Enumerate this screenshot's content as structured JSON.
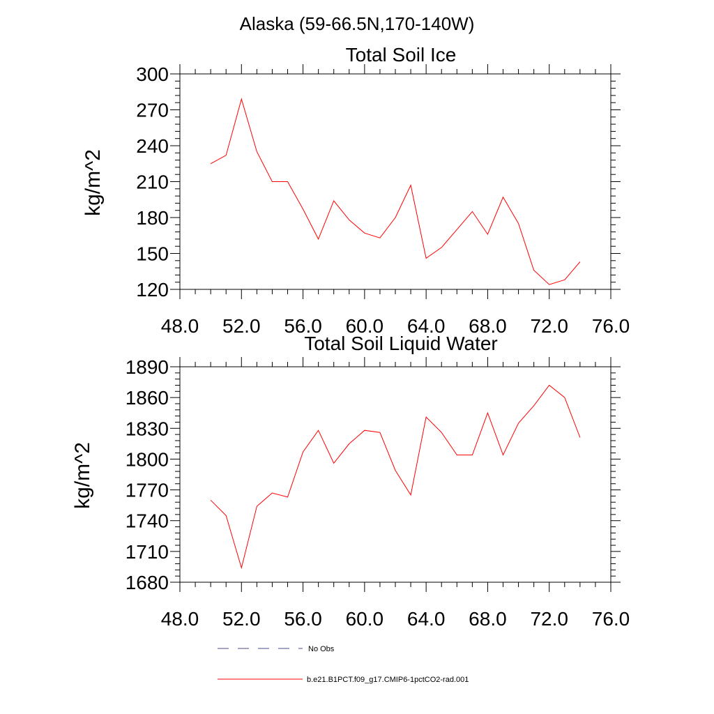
{
  "page_title": "Alaska (59-66.5N,170-140W)",
  "legend": {
    "obs_label": "No Obs",
    "model_label": "b.e21.B1PCT.f09_g17.CMIP6-1pctCO2-rad.001",
    "obs_color": "#4a4a8a",
    "model_color": "#ff0000"
  },
  "chart_data": [
    {
      "type": "line",
      "title": "Total Soil Ice",
      "ylabel": "kg/m^2",
      "xlabel": "",
      "xlim": [
        48,
        76
      ],
      "ylim": [
        120,
        300
      ],
      "x_ticks": [
        "48.0",
        "52.0",
        "56.0",
        "60.0",
        "64.0",
        "68.0",
        "72.0",
        "76.0"
      ],
      "y_ticks": [
        "120",
        "150",
        "180",
        "210",
        "240",
        "270",
        "300"
      ],
      "grid": false,
      "series": [
        {
          "name": "b.e21.B1PCT.f09_g17.CMIP6-1pctCO2-rad.001",
          "color": "#ff0000",
          "x": [
            50,
            51,
            52,
            53,
            54,
            55,
            56,
            57,
            58,
            59,
            60,
            61,
            62,
            63,
            64,
            65,
            66,
            67,
            68,
            69,
            70,
            71,
            72,
            73,
            74
          ],
          "values": [
            225,
            232,
            279,
            235,
            210,
            210,
            187,
            162,
            194,
            178,
            167,
            163,
            180,
            207,
            146,
            155,
            170,
            185,
            166,
            197,
            175,
            136,
            124,
            128,
            143
          ]
        }
      ]
    },
    {
      "type": "line",
      "title": "Total Soil Liquid Water",
      "ylabel": "kg/m^2",
      "xlabel": "",
      "xlim": [
        48,
        76
      ],
      "ylim": [
        1680,
        1890
      ],
      "x_ticks": [
        "48.0",
        "52.0",
        "56.0",
        "60.0",
        "64.0",
        "68.0",
        "72.0",
        "76.0"
      ],
      "y_ticks": [
        "1680",
        "1710",
        "1740",
        "1770",
        "1800",
        "1830",
        "1860",
        "1890"
      ],
      "grid": false,
      "series": [
        {
          "name": "b.e21.B1PCT.f09_g17.CMIP6-1pctCO2-rad.001",
          "color": "#ff0000",
          "x": [
            50,
            51,
            52,
            53,
            54,
            55,
            56,
            57,
            58,
            59,
            60,
            61,
            62,
            63,
            64,
            65,
            66,
            67,
            68,
            69,
            70,
            71,
            72,
            73,
            74
          ],
          "values": [
            1760,
            1745,
            1694,
            1754,
            1767,
            1763,
            1807,
            1828,
            1796,
            1815,
            1828,
            1826,
            1789,
            1765,
            1841,
            1826,
            1804,
            1804,
            1845,
            1804,
            1835,
            1852,
            1872,
            1860,
            1821
          ]
        }
      ]
    }
  ]
}
